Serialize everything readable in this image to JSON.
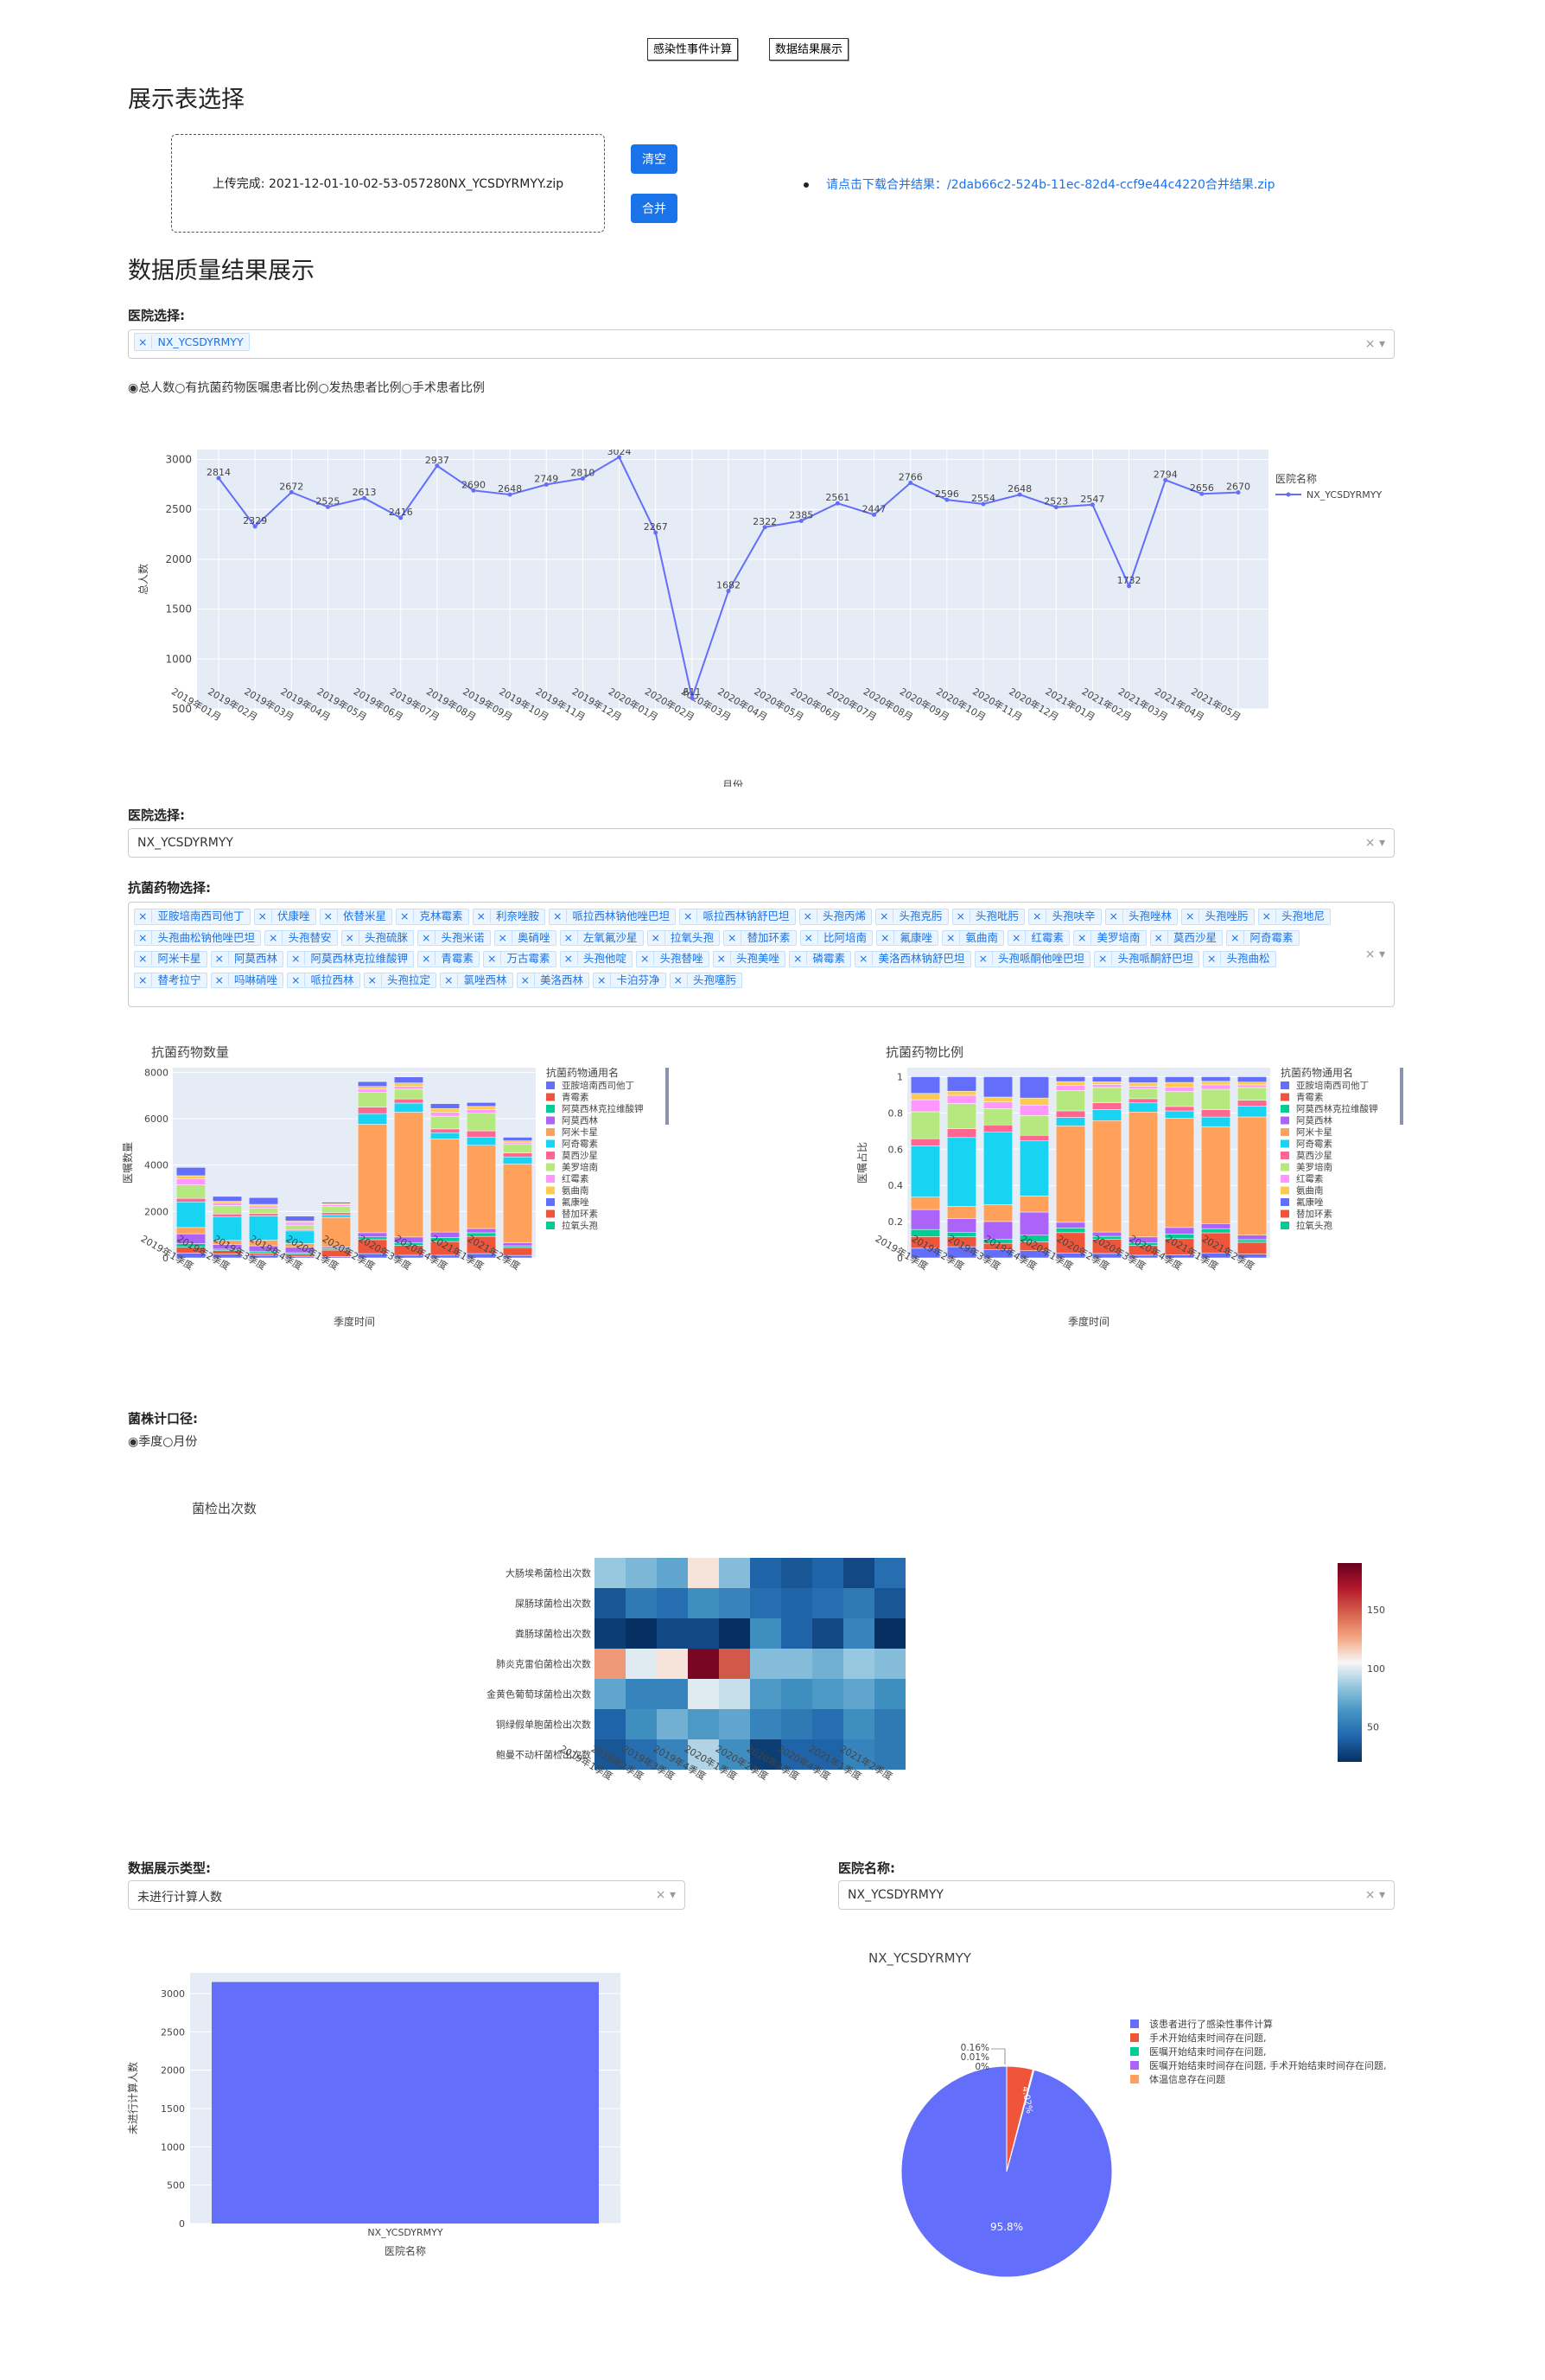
{
  "top_buttons": [
    "感染性事件计算",
    "数据结果展示"
  ],
  "section1": {
    "title": "展示表选择",
    "upload_text": "上传完成: 2021-12-01-10-02-53-057280NX_YCSDYRMYY.zip",
    "clear_btn": "清空",
    "merge_btn": "合并",
    "download_text": "请点击下载合并结果：/2dab66c2-524b-11ec-82d4-ccf9e44c4220合并结果.zip"
  },
  "section2": {
    "title": "数据质量结果展示",
    "hospital_label": "医院选择:",
    "hospital_chip": "NX_YCSDYRMYY",
    "clear_x": "×",
    "caret": "▾"
  },
  "radio1": {
    "options": [
      "总人数",
      "有抗菌药物医嘱患者比例",
      "发热患者比例",
      "手术患者比例"
    ],
    "selected": 0
  },
  "line_chart": {
    "legend_title": "医院名称",
    "legend_item": "NX_YCSDYRMYY",
    "ylabel": "总人数",
    "xlabel": "月份"
  },
  "hospital2": {
    "label": "医院选择:",
    "value": "NX_YCSDYRMYY"
  },
  "drug_select": {
    "label": "抗菌药物选择:",
    "chips": [
      "亚胺培南西司他丁",
      "伏康唑",
      "依替米星",
      "克林霉素",
      "利奈唑胺",
      "哌拉西林钠他唑巴坦",
      "哌拉西林钠舒巴坦",
      "头孢丙烯",
      "头孢克肟",
      "头孢吡肟",
      "头孢呋辛",
      "头孢唑林",
      "头孢唑肟",
      "头孢地尼",
      "头孢曲松钠他唑巴坦",
      "头孢替安",
      "头孢硫脒",
      "头孢米诺",
      "奥硝唑",
      "左氧氟沙星",
      "拉氧头孢",
      "替加环素",
      "比阿培南",
      "氟康唑",
      "氨曲南",
      "红霉素",
      "美罗培南",
      "莫西沙星",
      "阿奇霉素",
      "阿米卡星",
      "阿莫西林",
      "阿莫西林克拉维酸钾",
      "青霉素",
      "万古霉素",
      "头孢他啶",
      "头孢替唑",
      "头孢美唑",
      "磷霉素",
      "美洛西林钠舒巴坦",
      "头孢哌酮他唑巴坦",
      "头孢哌酮舒巴坦",
      "头孢曲松",
      "替考拉宁",
      "吗啉硝唑",
      "哌拉西林",
      "头孢拉定",
      "氯唑西林",
      "美洛西林",
      "卡泊芬净",
      "头孢噻肟"
    ]
  },
  "bar_count": {
    "title": "抗菌药物数量",
    "ylabel": "医嘱数量",
    "xlabel": "季度时间",
    "legend_title": "抗菌药物通用名"
  },
  "bar_ratio": {
    "title": "抗菌药物比例",
    "ylabel": "医嘱占比",
    "xlabel": "季度时间",
    "legend_title": "抗菌药物通用名"
  },
  "legend_items": [
    {
      "name": "亚胺培南西司他丁",
      "color": "#636efa"
    },
    {
      "name": "青霉素",
      "color": "#ef553b"
    },
    {
      "name": "阿莫西林克拉维酸钾",
      "color": "#00cc96"
    },
    {
      "name": "阿莫西林",
      "color": "#ab63fa"
    },
    {
      "name": "阿米卡星",
      "color": "#ffa15a"
    },
    {
      "name": "阿奇霉素",
      "color": "#19d3f3"
    },
    {
      "name": "莫西沙星",
      "color": "#ff6692"
    },
    {
      "name": "美罗培南",
      "color": "#b6e880"
    },
    {
      "name": "红霉素",
      "color": "#ff97ff"
    },
    {
      "name": "氨曲南",
      "color": "#fecb52"
    },
    {
      "name": "氟康唑",
      "color": "#636efa"
    },
    {
      "name": "替加环素",
      "color": "#ef553b"
    },
    {
      "name": "拉氧头孢",
      "color": "#00cc96"
    }
  ],
  "radio2": {
    "label": "菌株计口径:",
    "options": [
      "季度",
      "月份"
    ],
    "selected": 0
  },
  "heatmap": {
    "title": "菌检出次数",
    "rows": [
      "大肠埃希菌检出次数",
      "屎肠球菌检出次数",
      "粪肠球菌检出次数",
      "肺炎克雷伯菌检出次数",
      "金黄色葡萄球菌检出次数",
      "铜绿假单胞菌检出次数",
      "鲍曼不动杆菌检出次数"
    ],
    "cols": [
      "2019年1季度",
      "2019年2季度",
      "2019年3季度",
      "2019年4季度",
      "2020年1季度",
      "2020年2季度",
      "2020年3季度",
      "2020年4季度",
      "2021年1季度",
      "2021年2季度"
    ],
    "values": [
      [
        85,
        78,
        70,
        110,
        80,
        40,
        35,
        40,
        30,
        45
      ],
      [
        35,
        50,
        45,
        60,
        55,
        45,
        40,
        45,
        50,
        35
      ],
      [
        25,
        15,
        30,
        30,
        20,
        60,
        40,
        30,
        55,
        15
      ],
      [
        130,
        100,
        110,
        185,
        150,
        80,
        80,
        75,
        85,
        80
      ],
      [
        70,
        55,
        55,
        100,
        95,
        65,
        60,
        65,
        70,
        60
      ],
      [
        40,
        60,
        75,
        65,
        70,
        55,
        50,
        45,
        60,
        50
      ],
      [
        35,
        45,
        55,
        90,
        60,
        25,
        40,
        40,
        55,
        50
      ]
    ],
    "scale_ticks": [
      50,
      100,
      150
    ]
  },
  "type_select": {
    "label": "数据展示类型:",
    "value": "未进行计算人数"
  },
  "hospital3": {
    "label": "医院名称:",
    "value": "NX_YCSDYRMYY"
  },
  "bar_single": {
    "category": "NX_YCSDYRMYY",
    "value": 3150,
    "ylabel": "未进行计算人数",
    "xlabel": "医院名称",
    "ylim": [
      0,
      3150
    ]
  },
  "pie": {
    "title": "NX_YCSDYRMYY",
    "slices": [
      {
        "label": "该患者进行了感染性事件计算",
        "value": 95.8,
        "color": "#636efa"
      },
      {
        "label": "手术开始结束时间存在问题,",
        "value": 4.02,
        "color": "#ef553b"
      },
      {
        "label": "医嘱开始结束时间存在问题,",
        "value": 0.01,
        "color": "#00cc96"
      },
      {
        "label": "医嘱开始结束时间存在问题, 手术开始结束时间存在问题,",
        "value": 0.16,
        "color": "#ab63fa"
      },
      {
        "label": "体温信息存在问题",
        "value": 0.005,
        "color": "#ffa15a"
      }
    ],
    "labels_out": [
      "0.16%",
      "0.01%",
      "0%"
    ],
    "label_in": "4.02%",
    "label_main": "95.8%"
  },
  "chart_data": [
    {
      "type": "line",
      "title": "",
      "xlabel": "月份",
      "ylabel": "总人数",
      "ylim": [
        500,
        3000
      ],
      "x": [
        "2019年01月",
        "2019年02月",
        "2019年03月",
        "2019年04月",
        "2019年05月",
        "2019年06月",
        "2019年07月",
        "2019年08月",
        "2019年09月",
        "2019年10月",
        "2019年11月",
        "2019年12月",
        "2020年01月",
        "2020年02月",
        "2020年03月",
        "2020年04月",
        "2020年05月",
        "2020年06月",
        "2020年07月",
        "2020年08月",
        "2020年09月",
        "2020年10月",
        "2020年11月",
        "2020年12月",
        "2021年01月",
        "2021年02月",
        "2021年03月",
        "2021年04月",
        "2021年05月"
      ],
      "series": [
        {
          "name": "NX_YCSDYRMYY",
          "values": [
            2814,
            2329,
            2672,
            2525,
            2613,
            2416,
            2937,
            2690,
            2648,
            2749,
            2810,
            3024,
            2267,
            611,
            1682,
            2322,
            2385,
            2561,
            2447,
            2766,
            2596,
            2554,
            2648,
            2523,
            2547,
            1732,
            2794,
            2656,
            2670
          ]
        }
      ]
    },
    {
      "type": "bar",
      "title": "抗菌药物数量",
      "xlabel": "季度时间",
      "ylabel": "医嘱数量",
      "ylim": [
        0,
        8000
      ],
      "categories": [
        "2019年1季度",
        "2019年2季度",
        "2019年3季度",
        "2019年4季度",
        "2020年1季度",
        "2020年2季度",
        "2020年3季度",
        "2020年4季度",
        "2021年1季度",
        "2021年2季度"
      ],
      "totals": [
        3900,
        2650,
        2600,
        1800,
        2400,
        7600,
        7800,
        6650,
        6700,
        5200
      ]
    },
    {
      "type": "bar",
      "title": "抗菌药物比例",
      "xlabel": "季度时间",
      "ylabel": "医嘱占比",
      "ylim": [
        0,
        1
      ],
      "categories": [
        "2019年1季度",
        "2019年2季度",
        "2019年3季度",
        "2019年4季度",
        "2020年1季度",
        "2020年2季度",
        "2020年3季度",
        "2020年4季度",
        "2021年1季度",
        "2021年2季度"
      ]
    },
    {
      "type": "heatmap",
      "title": "菌检出次数"
    },
    {
      "type": "bar",
      "categories": [
        "NX_YCSDYRMYY"
      ],
      "values": [
        3150
      ],
      "xlabel": "医院名称",
      "ylabel": "未进行计算人数"
    },
    {
      "type": "pie",
      "title": "NX_YCSDYRMYY",
      "labels": [
        "该患者进行了感染性事件计算",
        "手术开始结束时间存在问题,",
        "医嘱开始结束时间存在问题,",
        "医嘱开始结束时间存在问题, 手术开始结束时间存在问题,",
        "体温信息存在问题"
      ],
      "values": [
        95.8,
        4.02,
        0.01,
        0.16,
        0.005
      ]
    }
  ]
}
